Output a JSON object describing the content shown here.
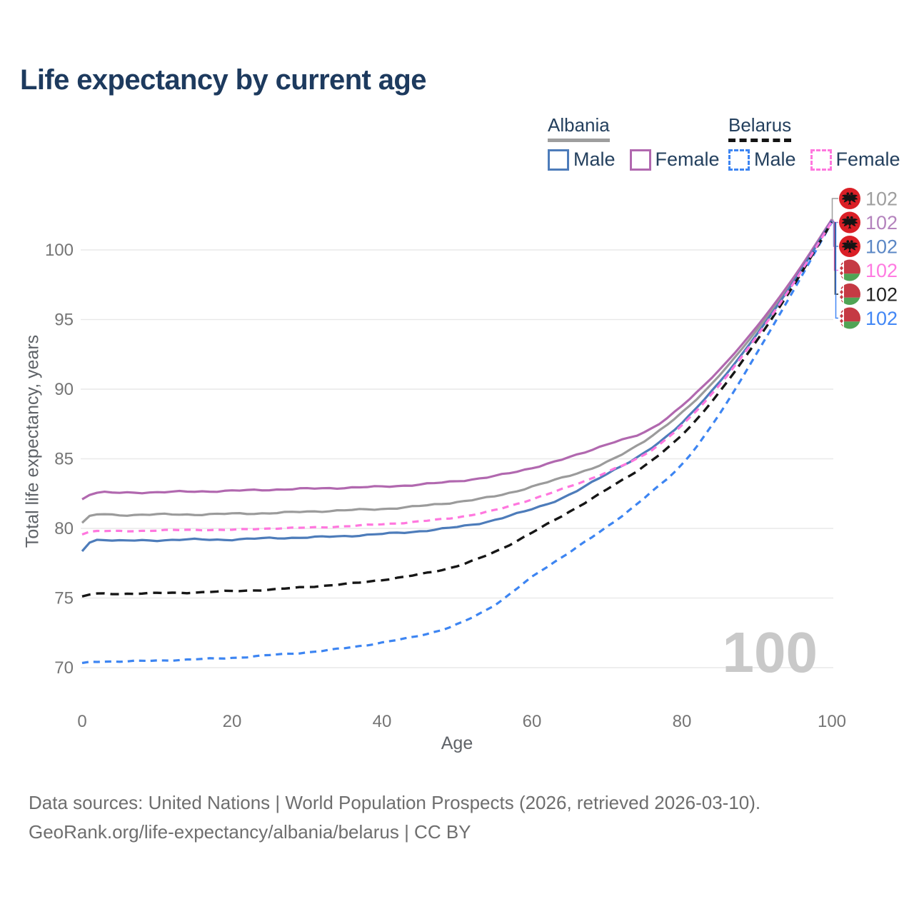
{
  "title": "Life expectancy by current age",
  "watermark": "100",
  "colors": {
    "title_text": "#1d3a5e",
    "legend_text": "#24405e",
    "grid": "#e9e9e9",
    "tick_text": "#757575",
    "axis_title_text": "#5f6368",
    "watermark_text": "#c9c9c9",
    "footer_text": "#6e6e6e",
    "albania_flag_red": "#da1f26",
    "belarus_flag_red": "#c53a44",
    "belarus_flag_green": "#50a455"
  },
  "legend": {
    "groups": [
      {
        "name": "Albania",
        "line_style": "solid",
        "underline_color": "#9e9e9e",
        "items": [
          {
            "label": "Male",
            "color": "#4d7cba"
          },
          {
            "label": "Female",
            "color": "#b168af"
          }
        ]
      },
      {
        "name": "Belarus",
        "line_style": "dashed",
        "underline_color": "#141414",
        "items": [
          {
            "label": "Male",
            "color": "#3d85f2"
          },
          {
            "label": "Female",
            "color": "#ff77de"
          }
        ]
      }
    ]
  },
  "chart_data": {
    "type": "line",
    "title": "Life expectancy by current age",
    "xlabel": "Age",
    "ylabel": "Total life expectancy, years",
    "x_ticks": [
      0,
      20,
      40,
      60,
      80,
      100
    ],
    "y_ticks": [
      70,
      75,
      80,
      85,
      90,
      95,
      100
    ],
    "xlim": [
      0,
      100
    ],
    "ylim": [
      69,
      103
    ],
    "grid": "horizontal",
    "x": [
      0,
      1,
      5,
      10,
      15,
      20,
      25,
      30,
      35,
      40,
      45,
      50,
      55,
      60,
      65,
      70,
      75,
      80,
      85,
      90,
      95,
      100
    ],
    "series": [
      {
        "name": "Albania Total",
        "country": "Albania",
        "group": "total",
        "color": "#9b9b9b",
        "dashed": false,
        "end_label": "102",
        "label_color": "#9e9e9e",
        "values": [
          80.4,
          80.85,
          80.95,
          81.0,
          81.0,
          81.05,
          81.1,
          81.2,
          81.3,
          81.4,
          81.6,
          81.9,
          82.3,
          83.0,
          83.8,
          84.75,
          86.3,
          88.3,
          91.0,
          94.25,
          98.0,
          102.15
        ]
      },
      {
        "name": "Albania Female",
        "country": "Albania",
        "group": "female",
        "color": "#b168af",
        "dashed": false,
        "end_label": "102",
        "label_color": "#b483bd",
        "values": [
          82.1,
          82.45,
          82.55,
          82.6,
          82.65,
          82.7,
          82.78,
          82.85,
          82.92,
          83.0,
          83.15,
          83.4,
          83.75,
          84.35,
          85.1,
          86.05,
          86.9,
          88.8,
          91.4,
          94.5,
          98.1,
          102.2
        ]
      },
      {
        "name": "Albania Male",
        "country": "Albania",
        "group": "male",
        "color": "#4d7cba",
        "dashed": false,
        "end_label": "102",
        "label_color": "#5b87c5",
        "values": [
          78.4,
          79.0,
          79.1,
          79.15,
          79.2,
          79.2,
          79.3,
          79.35,
          79.45,
          79.6,
          79.8,
          80.1,
          80.6,
          81.4,
          82.4,
          83.95,
          85.4,
          87.6,
          90.5,
          93.95,
          97.8,
          102.1
        ]
      },
      {
        "name": "Belarus Female",
        "country": "Belarus",
        "group": "female",
        "color": "#ff77de",
        "dashed": true,
        "end_label": "102",
        "label_color": "#ff7ae1",
        "values": [
          79.6,
          79.75,
          79.8,
          79.85,
          79.9,
          79.9,
          80.0,
          80.05,
          80.15,
          80.3,
          80.5,
          80.8,
          81.3,
          82.1,
          83.0,
          84.05,
          85.3,
          87.4,
          90.3,
          93.8,
          97.7,
          102.05
        ]
      },
      {
        "name": "Belarus Total",
        "country": "Belarus",
        "group": "total",
        "color": "#161616",
        "dashed": true,
        "end_label": "102",
        "label_color": "#222222",
        "values": [
          75.1,
          75.25,
          75.3,
          75.35,
          75.4,
          75.5,
          75.6,
          75.8,
          76.0,
          76.3,
          76.7,
          77.3,
          78.3,
          79.7,
          81.2,
          82.8,
          84.5,
          86.7,
          89.8,
          93.5,
          97.55,
          102.0
        ]
      },
      {
        "name": "Belarus Male",
        "country": "Belarus",
        "group": "male",
        "color": "#3d85f2",
        "dashed": true,
        "end_label": "102",
        "label_color": "#4287f5",
        "values": [
          70.3,
          70.4,
          70.45,
          70.5,
          70.6,
          70.7,
          70.9,
          71.1,
          71.4,
          71.8,
          72.3,
          73.1,
          74.5,
          76.5,
          78.3,
          80.1,
          82.2,
          84.6,
          88.2,
          92.6,
          97.2,
          102.0
        ]
      }
    ],
    "end_label_order": [
      "Albania Total",
      "Albania Female",
      "Albania Male",
      "Belarus Female",
      "Belarus Total",
      "Belarus Male"
    ],
    "draw_order": [
      "Albania Total",
      "Albania Female",
      "Albania Male",
      "Belarus Male",
      "Belarus Total",
      "Belarus Female"
    ]
  },
  "footer": {
    "line1": "Data sources: United Nations | World Population Prospects (2026, retrieved 2026-03-10).",
    "line2": "GeoRank.org/life-expectancy/albania/belarus | CC BY"
  }
}
